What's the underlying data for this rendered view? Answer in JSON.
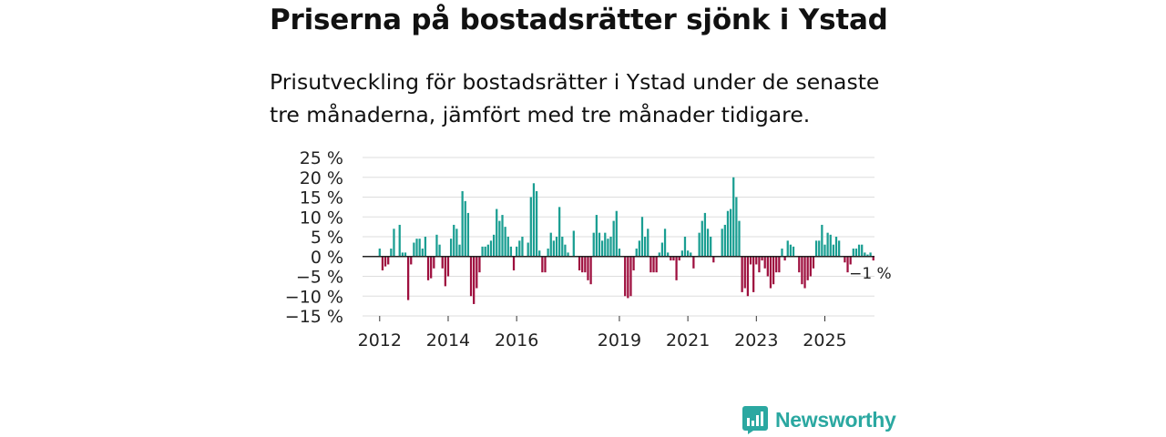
{
  "title": "Priserna på bostadsrätter sjönk i Ystad",
  "subtitle": "Prisutveckling för bostadsrätter i Ystad under de senaste tre månaderna, jämfört med tre månader tidigare.",
  "brand": {
    "name": "Newsworthy",
    "icon": "newsworthy-logo-icon"
  },
  "colors": {
    "positive": "#1a9e92",
    "negative": "#9e0f3e",
    "grid": "#dddddd",
    "zero": "#222222",
    "brand": "#2ba8a1"
  },
  "chart_data": {
    "type": "bar",
    "title": "Priserna på bostadsrätter sjönk i Ystad",
    "xlabel": "",
    "ylabel": "",
    "ylim": [
      -15,
      25
    ],
    "xlim": [
      2011.5,
      2026.45
    ],
    "y_ticks": [
      25,
      20,
      15,
      10,
      5,
      0,
      -5,
      -10,
      -15
    ],
    "y_tick_labels": [
      "25 %",
      "20 %",
      "15 %",
      "10 %",
      "5 %",
      "0 %",
      "−5 %",
      "−10 %",
      "−15 %"
    ],
    "x_ticks": [
      2012,
      2014,
      2016,
      2019,
      2021,
      2023,
      2025
    ],
    "x_tick_labels": [
      "2012",
      "2014",
      "2016",
      "2019",
      "2021",
      "2023",
      "2025"
    ],
    "end_label": "−1 %",
    "grid": true,
    "legend": "none",
    "series": [
      {
        "name": "Prisutveckling",
        "start": 2012.0,
        "step": 0.08333,
        "values": [
          2,
          -3.5,
          -2.5,
          -2,
          2,
          7,
          0,
          8,
          1,
          1,
          -11,
          -2,
          3.5,
          4.5,
          4.5,
          2,
          5,
          -6,
          -5.5,
          -3,
          5.5,
          3,
          -3,
          -7.5,
          -5,
          4.5,
          8,
          7,
          3,
          16.5,
          14,
          11,
          -10,
          -12,
          -8,
          -4,
          2.5,
          2.5,
          3,
          4,
          5.5,
          12,
          9,
          10.5,
          7.5,
          5,
          2.5,
          -3.5,
          2.5,
          4,
          5,
          0,
          3.5,
          15,
          18.5,
          16.5,
          1.5,
          -4,
          -4,
          2,
          6,
          4,
          5,
          12.5,
          5,
          3,
          1,
          0,
          6.5,
          0,
          -3.5,
          -4,
          -4,
          -6,
          -7,
          6,
          10.5,
          6,
          4,
          6,
          4.5,
          5,
          9,
          11.5,
          2,
          0,
          -10,
          -10.5,
          -10,
          -3.5,
          2,
          4,
          10,
          5,
          7,
          -4,
          -4,
          -4,
          1,
          3.5,
          7,
          1,
          -1,
          -1,
          -6,
          -1,
          1.5,
          5,
          1.5,
          1,
          -3,
          0,
          6,
          9,
          11,
          7,
          5,
          -1.5,
          0,
          0,
          7,
          8,
          11.5,
          12,
          20,
          15,
          9,
          -9,
          -8,
          -10,
          -2,
          -9,
          -2,
          -4,
          -1,
          -3,
          -5,
          -8,
          -7,
          -4,
          -4,
          2,
          -1,
          4,
          3,
          2.5,
          0,
          -4,
          -7,
          -8,
          -6,
          -5,
          -3,
          4,
          4,
          8,
          3,
          6,
          5.5,
          3,
          5,
          4,
          0,
          -1.5,
          -4,
          -2,
          2,
          2,
          3,
          3,
          1,
          0.5,
          1,
          -1
        ]
      }
    ]
  }
}
